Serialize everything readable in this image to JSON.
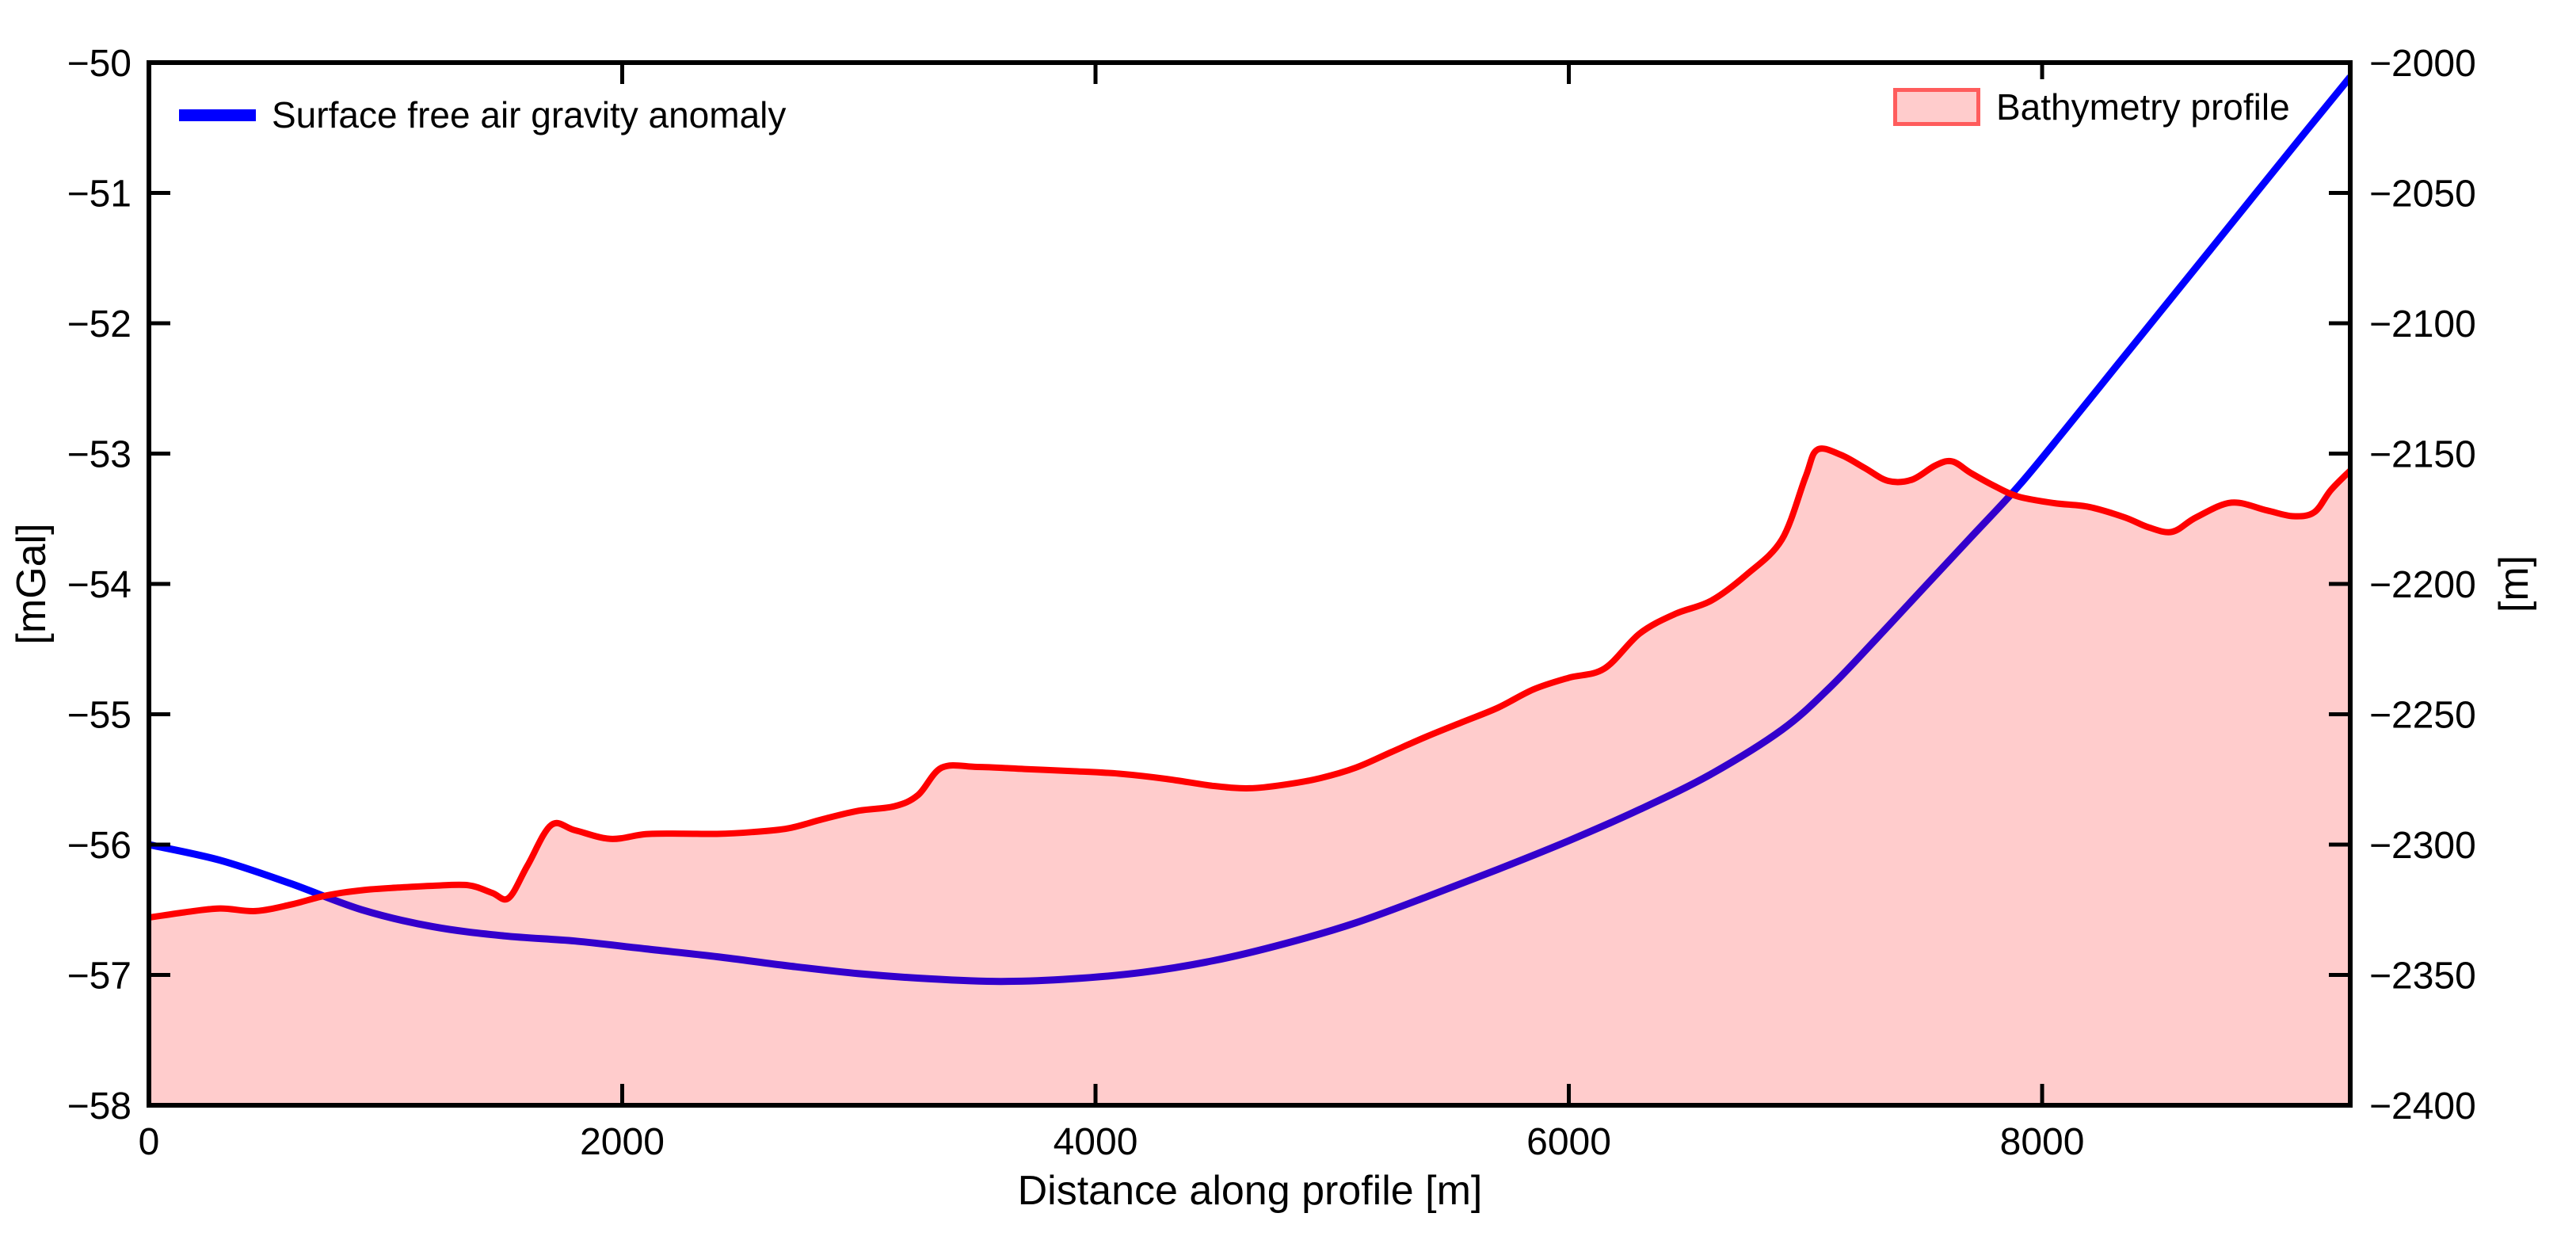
{
  "figure": {
    "xlabel": "Distance along profile [m]",
    "ylabel_left": "[mGal]",
    "ylabel_right": "[m]"
  },
  "legend": {
    "gravity_label": "Surface free air gravity anomaly",
    "bathymetry_label": "Bathymetry profile"
  },
  "colors": {
    "gravity_line": "#0000ff",
    "bathymetry_line": "#ff0000",
    "bathymetry_fill": "rgba(255,0,0,0.2)",
    "bathymetry_patch_edge": "rgba(255,0,0,0.55)",
    "axis": "#000000",
    "text": "#000000",
    "background": "#ffffff"
  },
  "chart_data": {
    "type": "line",
    "title": "",
    "xlabel": "Distance along profile [m]",
    "ylabel_left": "[mGal]",
    "ylabel_right": "[m]",
    "xlim": [
      0,
      9302
    ],
    "x_ticks": [
      0,
      2000,
      4000,
      6000,
      8000
    ],
    "ylim_left": [
      -58,
      -50
    ],
    "y_ticks_left": [
      -58,
      -57,
      -56,
      -55,
      -54,
      -53,
      -52,
      -51,
      -50
    ],
    "ylim_right": [
      -2400,
      -2000
    ],
    "y_ticks_right": [
      -2400,
      -2350,
      -2300,
      -2250,
      -2200,
      -2150,
      -2100,
      -2050,
      -2000
    ],
    "grid": false,
    "legend_position": [
      "upper left",
      "upper right"
    ],
    "series": [
      {
        "name": "Surface free air gravity anomaly",
        "axis": "left",
        "style": "line",
        "color": "#0000ff",
        "line_width": 9,
        "x": [
          0,
          300,
          600,
          900,
          1200,
          1500,
          1800,
          2100,
          2400,
          2700,
          3000,
          3300,
          3600,
          3900,
          4200,
          4500,
          4800,
          5100,
          5400,
          5700,
          6000,
          6300,
          6600,
          6900,
          7100,
          7300,
          7500,
          7700,
          7900,
          8100,
          8300,
          8500,
          8700,
          8900,
          9100,
          9302
        ],
        "y": [
          -56.0,
          -56.12,
          -56.3,
          -56.5,
          -56.63,
          -56.7,
          -56.74,
          -56.8,
          -56.86,
          -56.93,
          -56.99,
          -57.03,
          -57.05,
          -57.03,
          -56.98,
          -56.89,
          -56.76,
          -56.6,
          -56.4,
          -56.19,
          -55.97,
          -55.73,
          -55.46,
          -55.12,
          -54.8,
          -54.42,
          -54.03,
          -53.64,
          -53.25,
          -52.81,
          -52.36,
          -51.91,
          -51.46,
          -51.01,
          -50.56,
          -50.11
        ]
      },
      {
        "name": "Bathymetry profile",
        "axis": "right",
        "style": "area",
        "color": "#ff0000",
        "fill": "rgba(255,0,0,0.2)",
        "line_width": 8,
        "x": [
          0,
          150,
          300,
          450,
          600,
          750,
          900,
          1050,
          1200,
          1350,
          1450,
          1520,
          1600,
          1700,
          1800,
          1950,
          2100,
          2250,
          2400,
          2550,
          2700,
          2850,
          3000,
          3150,
          3250,
          3350,
          3500,
          3700,
          3900,
          4100,
          4300,
          4500,
          4650,
          4800,
          4950,
          5100,
          5250,
          5400,
          5550,
          5700,
          5850,
          6000,
          6150,
          6300,
          6450,
          6600,
          6750,
          6900,
          7000,
          7050,
          7150,
          7250,
          7350,
          7450,
          7550,
          7620,
          7700,
          7800,
          7900,
          8050,
          8200,
          8350,
          8450,
          8550,
          8650,
          8800,
          8950,
          9060,
          9150,
          9220,
          9302
        ],
        "y": [
          -2328,
          -2326,
          -2324.5,
          -2325.5,
          -2323,
          -2319.5,
          -2317.5,
          -2316.5,
          -2315.8,
          -2315.6,
          -2318.5,
          -2320.5,
          -2308,
          -2292.5,
          -2294.5,
          -2297.8,
          -2296,
          -2295.8,
          -2295.9,
          -2295.2,
          -2293.8,
          -2290.2,
          -2287,
          -2285.3,
          -2281,
          -2270.5,
          -2270.2,
          -2271,
          -2271.8,
          -2272.8,
          -2274.8,
          -2277.5,
          -2278.4,
          -2277,
          -2274.5,
          -2270.5,
          -2264.5,
          -2258.5,
          -2253,
          -2247.5,
          -2240.5,
          -2236,
          -2232.5,
          -2219,
          -2211.5,
          -2206.5,
          -2196.5,
          -2183,
          -2159,
          -2148.5,
          -2150.5,
          -2155.5,
          -2160.5,
          -2160,
          -2154.5,
          -2153,
          -2157.5,
          -2162.5,
          -2166.5,
          -2169,
          -2170.5,
          -2174.5,
          -2178.3,
          -2180,
          -2174.5,
          -2168.8,
          -2171.8,
          -2174,
          -2172.5,
          -2164,
          -2156.5
        ]
      }
    ]
  }
}
